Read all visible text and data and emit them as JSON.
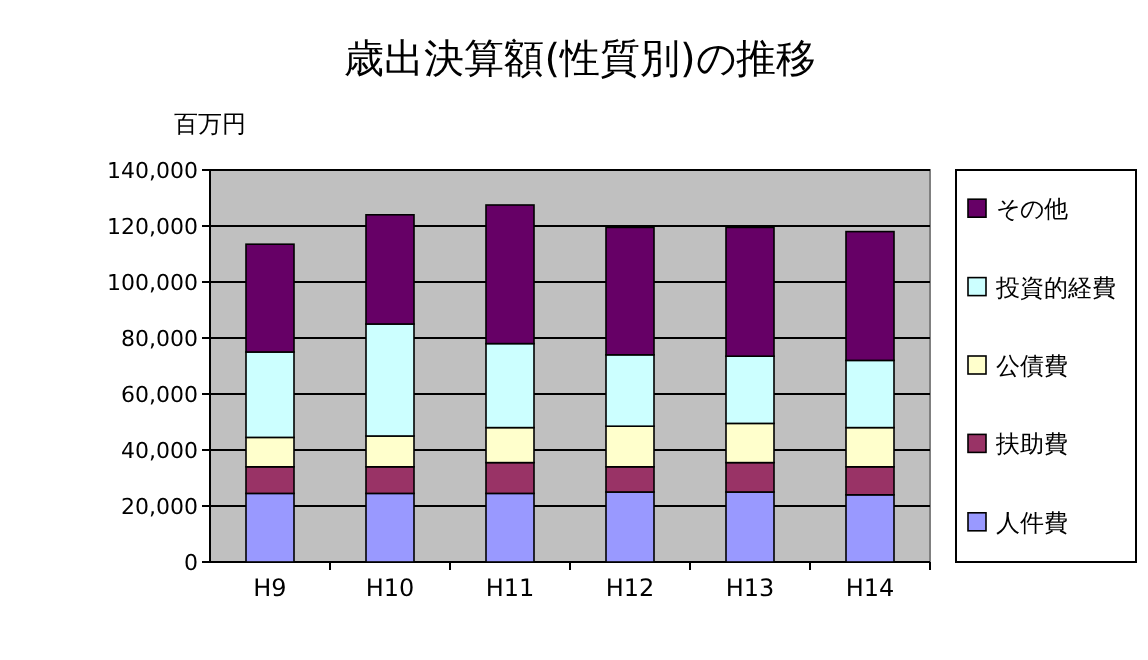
{
  "chart_data": {
    "type": "bar",
    "stacked": true,
    "title": "歳出決算額(性質別)の推移",
    "ylabel": "百万円",
    "categories": [
      "H9",
      "H10",
      "H11",
      "H12",
      "H13",
      "H14"
    ],
    "series": [
      {
        "name": "人件費",
        "color": "#9999ff",
        "values": [
          24500,
          24500,
          24500,
          25000,
          25000,
          24000
        ]
      },
      {
        "name": "扶助費",
        "color": "#993366",
        "values": [
          9500,
          9500,
          11000,
          9000,
          10500,
          10000
        ]
      },
      {
        "name": "公債費",
        "color": "#ffffcc",
        "values": [
          10500,
          11000,
          12500,
          14500,
          14000,
          14000
        ]
      },
      {
        "name": "投資的経費",
        "color": "#ccffff",
        "values": [
          30500,
          40000,
          30000,
          25500,
          24000,
          24000
        ]
      },
      {
        "name": "その他",
        "color": "#660066",
        "values": [
          38500,
          39000,
          49500,
          45500,
          46000,
          46000
        ]
      }
    ],
    "ylim": [
      0,
      140000
    ],
    "yticks": [
      {
        "value": 0,
        "label": "0"
      },
      {
        "value": 20000,
        "label": "20,000"
      },
      {
        "value": 40000,
        "label": "40,000"
      },
      {
        "value": 60000,
        "label": "60,000"
      },
      {
        "value": 80000,
        "label": "80,000"
      },
      {
        "value": 100000,
        "label": "100,000"
      },
      {
        "value": 120000,
        "label": "120,000"
      },
      {
        "value": 140000,
        "label": "140,000"
      }
    ],
    "grid": "y",
    "legend": "right"
  }
}
